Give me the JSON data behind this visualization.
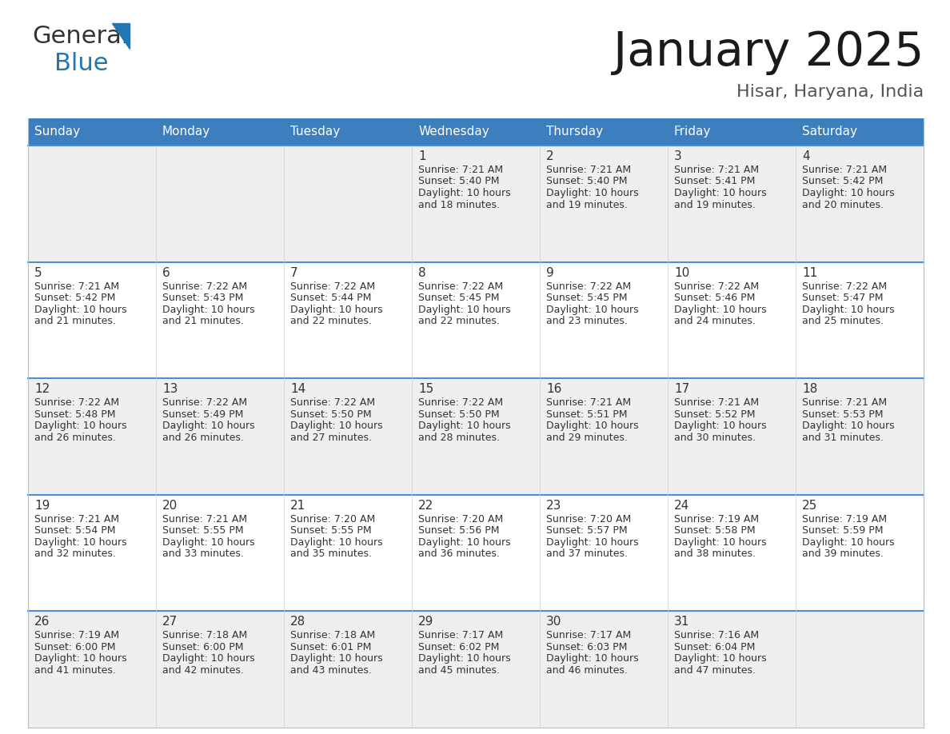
{
  "title": "January 2025",
  "subtitle": "Hisar, Haryana, India",
  "header_bg": "#3d7ebf",
  "header_text_color": "#ffffff",
  "cell_bg_odd": "#efefef",
  "cell_bg_even": "#ffffff",
  "separator_color": "#4a90d9",
  "day_headers": [
    "Sunday",
    "Monday",
    "Tuesday",
    "Wednesday",
    "Thursday",
    "Friday",
    "Saturday"
  ],
  "calendar": [
    [
      {
        "day": "",
        "sunrise": "",
        "sunset": "",
        "daylight": ""
      },
      {
        "day": "",
        "sunrise": "",
        "sunset": "",
        "daylight": ""
      },
      {
        "day": "",
        "sunrise": "",
        "sunset": "",
        "daylight": ""
      },
      {
        "day": "1",
        "sunrise": "7:21 AM",
        "sunset": "5:40 PM",
        "daylight": "10 hours\nand 18 minutes."
      },
      {
        "day": "2",
        "sunrise": "7:21 AM",
        "sunset": "5:40 PM",
        "daylight": "10 hours\nand 19 minutes."
      },
      {
        "day": "3",
        "sunrise": "7:21 AM",
        "sunset": "5:41 PM",
        "daylight": "10 hours\nand 19 minutes."
      },
      {
        "day": "4",
        "sunrise": "7:21 AM",
        "sunset": "5:42 PM",
        "daylight": "10 hours\nand 20 minutes."
      }
    ],
    [
      {
        "day": "5",
        "sunrise": "7:21 AM",
        "sunset": "5:42 PM",
        "daylight": "10 hours\nand 21 minutes."
      },
      {
        "day": "6",
        "sunrise": "7:22 AM",
        "sunset": "5:43 PM",
        "daylight": "10 hours\nand 21 minutes."
      },
      {
        "day": "7",
        "sunrise": "7:22 AM",
        "sunset": "5:44 PM",
        "daylight": "10 hours\nand 22 minutes."
      },
      {
        "day": "8",
        "sunrise": "7:22 AM",
        "sunset": "5:45 PM",
        "daylight": "10 hours\nand 22 minutes."
      },
      {
        "day": "9",
        "sunrise": "7:22 AM",
        "sunset": "5:45 PM",
        "daylight": "10 hours\nand 23 minutes."
      },
      {
        "day": "10",
        "sunrise": "7:22 AM",
        "sunset": "5:46 PM",
        "daylight": "10 hours\nand 24 minutes."
      },
      {
        "day": "11",
        "sunrise": "7:22 AM",
        "sunset": "5:47 PM",
        "daylight": "10 hours\nand 25 minutes."
      }
    ],
    [
      {
        "day": "12",
        "sunrise": "7:22 AM",
        "sunset": "5:48 PM",
        "daylight": "10 hours\nand 26 minutes."
      },
      {
        "day": "13",
        "sunrise": "7:22 AM",
        "sunset": "5:49 PM",
        "daylight": "10 hours\nand 26 minutes."
      },
      {
        "day": "14",
        "sunrise": "7:22 AM",
        "sunset": "5:50 PM",
        "daylight": "10 hours\nand 27 minutes."
      },
      {
        "day": "15",
        "sunrise": "7:22 AM",
        "sunset": "5:50 PM",
        "daylight": "10 hours\nand 28 minutes."
      },
      {
        "day": "16",
        "sunrise": "7:21 AM",
        "sunset": "5:51 PM",
        "daylight": "10 hours\nand 29 minutes."
      },
      {
        "day": "17",
        "sunrise": "7:21 AM",
        "sunset": "5:52 PM",
        "daylight": "10 hours\nand 30 minutes."
      },
      {
        "day": "18",
        "sunrise": "7:21 AM",
        "sunset": "5:53 PM",
        "daylight": "10 hours\nand 31 minutes."
      }
    ],
    [
      {
        "day": "19",
        "sunrise": "7:21 AM",
        "sunset": "5:54 PM",
        "daylight": "10 hours\nand 32 minutes."
      },
      {
        "day": "20",
        "sunrise": "7:21 AM",
        "sunset": "5:55 PM",
        "daylight": "10 hours\nand 33 minutes."
      },
      {
        "day": "21",
        "sunrise": "7:20 AM",
        "sunset": "5:55 PM",
        "daylight": "10 hours\nand 35 minutes."
      },
      {
        "day": "22",
        "sunrise": "7:20 AM",
        "sunset": "5:56 PM",
        "daylight": "10 hours\nand 36 minutes."
      },
      {
        "day": "23",
        "sunrise": "7:20 AM",
        "sunset": "5:57 PM",
        "daylight": "10 hours\nand 37 minutes."
      },
      {
        "day": "24",
        "sunrise": "7:19 AM",
        "sunset": "5:58 PM",
        "daylight": "10 hours\nand 38 minutes."
      },
      {
        "day": "25",
        "sunrise": "7:19 AM",
        "sunset": "5:59 PM",
        "daylight": "10 hours\nand 39 minutes."
      }
    ],
    [
      {
        "day": "26",
        "sunrise": "7:19 AM",
        "sunset": "6:00 PM",
        "daylight": "10 hours\nand 41 minutes."
      },
      {
        "day": "27",
        "sunrise": "7:18 AM",
        "sunset": "6:00 PM",
        "daylight": "10 hours\nand 42 minutes."
      },
      {
        "day": "28",
        "sunrise": "7:18 AM",
        "sunset": "6:01 PM",
        "daylight": "10 hours\nand 43 minutes."
      },
      {
        "day": "29",
        "sunrise": "7:17 AM",
        "sunset": "6:02 PM",
        "daylight": "10 hours\nand 45 minutes."
      },
      {
        "day": "30",
        "sunrise": "7:17 AM",
        "sunset": "6:03 PM",
        "daylight": "10 hours\nand 46 minutes."
      },
      {
        "day": "31",
        "sunrise": "7:16 AM",
        "sunset": "6:04 PM",
        "daylight": "10 hours\nand 47 minutes."
      },
      {
        "day": "",
        "sunrise": "",
        "sunset": "",
        "daylight": ""
      }
    ]
  ],
  "logo_color_general": "#333333",
  "logo_color_blue": "#2077b4",
  "logo_triangle_color": "#2077b4",
  "title_fontsize": 42,
  "subtitle_fontsize": 16,
  "header_fontsize": 11,
  "day_num_fontsize": 11,
  "cell_text_fontsize": 9
}
